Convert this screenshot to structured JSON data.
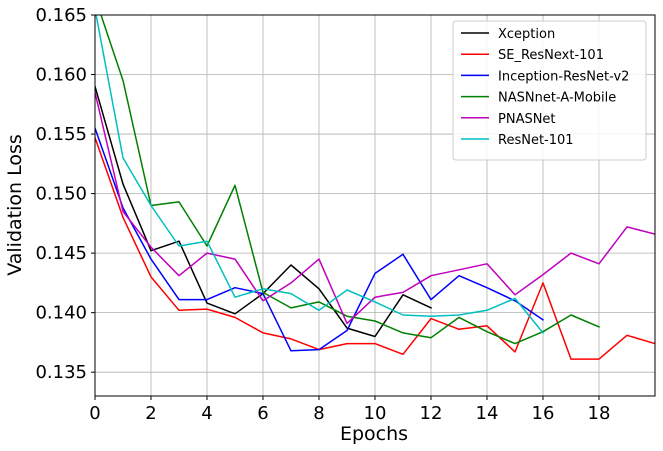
{
  "chart_data": {
    "type": "line",
    "xlabel": "Epochs",
    "ylabel": "Validation Loss",
    "xlim": [
      0,
      20
    ],
    "ylim": [
      0.133,
      0.165
    ],
    "xticks": [
      0,
      2,
      4,
      6,
      8,
      10,
      12,
      14,
      16,
      18
    ],
    "xtick_labels": [
      "0",
      "2",
      "4",
      "6",
      "8",
      "10",
      "12",
      "14",
      "16",
      "18"
    ],
    "yticks": [
      0.135,
      0.14,
      0.145,
      0.15,
      0.155,
      0.16,
      0.165
    ],
    "ytick_labels": [
      "0.135",
      "0.140",
      "0.145",
      "0.150",
      "0.155",
      "0.160",
      "0.165"
    ],
    "grid": true,
    "legend_position": "top-right",
    "series": [
      {
        "name": "Xception",
        "color": "#000000",
        "x": [
          0,
          1,
          2,
          3,
          4,
          5,
          6,
          7,
          8,
          9,
          10,
          11,
          12
        ],
        "y": [
          0.159,
          0.1508,
          0.1452,
          0.146,
          0.1408,
          0.1399,
          0.1416,
          0.144,
          0.142,
          0.1387,
          0.138,
          0.1415,
          0.1404
        ]
      },
      {
        "name": "SE_ResNext-101",
        "color": "#ff0000",
        "x": [
          0,
          1,
          2,
          3,
          4,
          5,
          6,
          7,
          8,
          9,
          10,
          11,
          12,
          13,
          14,
          15,
          16,
          17,
          18,
          19,
          20
        ],
        "y": [
          0.1547,
          0.148,
          0.143,
          0.1402,
          0.1403,
          0.1396,
          0.1383,
          0.1378,
          0.1369,
          0.1374,
          0.1374,
          0.1365,
          0.1395,
          0.1386,
          0.1389,
          0.1367,
          0.1425,
          0.1361,
          0.1361,
          0.1381,
          0.1374
        ]
      },
      {
        "name": "Inception-ResNet-v2",
        "color": "#0000ff",
        "x": [
          0,
          1,
          2,
          3,
          4,
          5,
          6,
          7,
          8,
          9,
          10,
          11,
          12,
          13,
          14,
          15,
          16
        ],
        "y": [
          0.1555,
          0.1488,
          0.1445,
          0.1411,
          0.1411,
          0.1421,
          0.1416,
          0.1368,
          0.1369,
          0.1385,
          0.1433,
          0.1449,
          0.1411,
          0.1431,
          0.1421,
          0.141,
          0.1394
        ]
      },
      {
        "name": "NASNnet-A-Mobile",
        "color": "#008000",
        "x": [
          0,
          1,
          2,
          3,
          4,
          5,
          6,
          7,
          8,
          9,
          10,
          11,
          12,
          13,
          14,
          15,
          16,
          17,
          18
        ],
        "y": [
          0.1665,
          0.1595,
          0.149,
          0.1493,
          0.1456,
          0.1507,
          0.1417,
          0.1404,
          0.1409,
          0.1397,
          0.1393,
          0.1383,
          0.1379,
          0.1396,
          0.1384,
          0.1374,
          0.1384,
          0.1398,
          0.1388
        ]
      },
      {
        "name": "PNASNet",
        "color": "#bf00bf",
        "x": [
          0,
          1,
          2,
          3,
          4,
          5,
          6,
          7,
          8,
          9,
          10,
          11,
          12,
          13,
          14,
          15,
          16,
          17,
          18,
          19,
          20
        ],
        "y": [
          0.1585,
          0.1485,
          0.1455,
          0.1431,
          0.145,
          0.1445,
          0.141,
          0.1425,
          0.1445,
          0.1391,
          0.1413,
          0.1417,
          0.1431,
          0.1436,
          0.1441,
          0.1415,
          0.1432,
          0.145,
          0.1441,
          0.1472,
          0.1466
        ]
      },
      {
        "name": "ResNet-101",
        "color": "#00bfbf",
        "x": [
          0,
          1,
          2,
          3,
          4,
          5,
          6,
          7,
          8,
          9,
          10,
          11,
          12,
          13,
          14,
          15,
          16
        ],
        "y": [
          0.1655,
          0.153,
          0.149,
          0.1456,
          0.146,
          0.1413,
          0.142,
          0.1416,
          0.1402,
          0.1419,
          0.1409,
          0.1398,
          0.1397,
          0.1398,
          0.1402,
          0.1412,
          0.1383
        ]
      }
    ]
  }
}
